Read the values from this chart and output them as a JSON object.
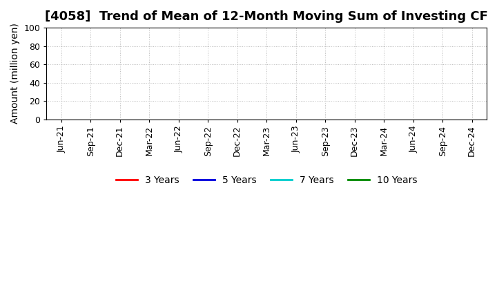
{
  "title": "[4058]  Trend of Mean of 12-Month Moving Sum of Investing CF",
  "ylabel": "Amount (million yen)",
  "ylim": [
    0,
    100
  ],
  "yticks": [
    0,
    20,
    40,
    60,
    80,
    100
  ],
  "x_labels": [
    "Jun-21",
    "Sep-21",
    "Dec-21",
    "Mar-22",
    "Jun-22",
    "Sep-22",
    "Dec-22",
    "Mar-23",
    "Jun-23",
    "Sep-23",
    "Dec-23",
    "Mar-24",
    "Jun-24",
    "Sep-24",
    "Dec-24"
  ],
  "background_color": "#ffffff",
  "grid_color": "#bbbbbb",
  "legend_entries": [
    {
      "label": "3 Years",
      "color": "#ff0000"
    },
    {
      "label": "5 Years",
      "color": "#0000dd"
    },
    {
      "label": "7 Years",
      "color": "#00cccc"
    },
    {
      "label": "10 Years",
      "color": "#008800"
    }
  ],
  "title_fontsize": 13,
  "axis_label_fontsize": 10,
  "tick_fontsize": 9,
  "legend_fontsize": 10
}
